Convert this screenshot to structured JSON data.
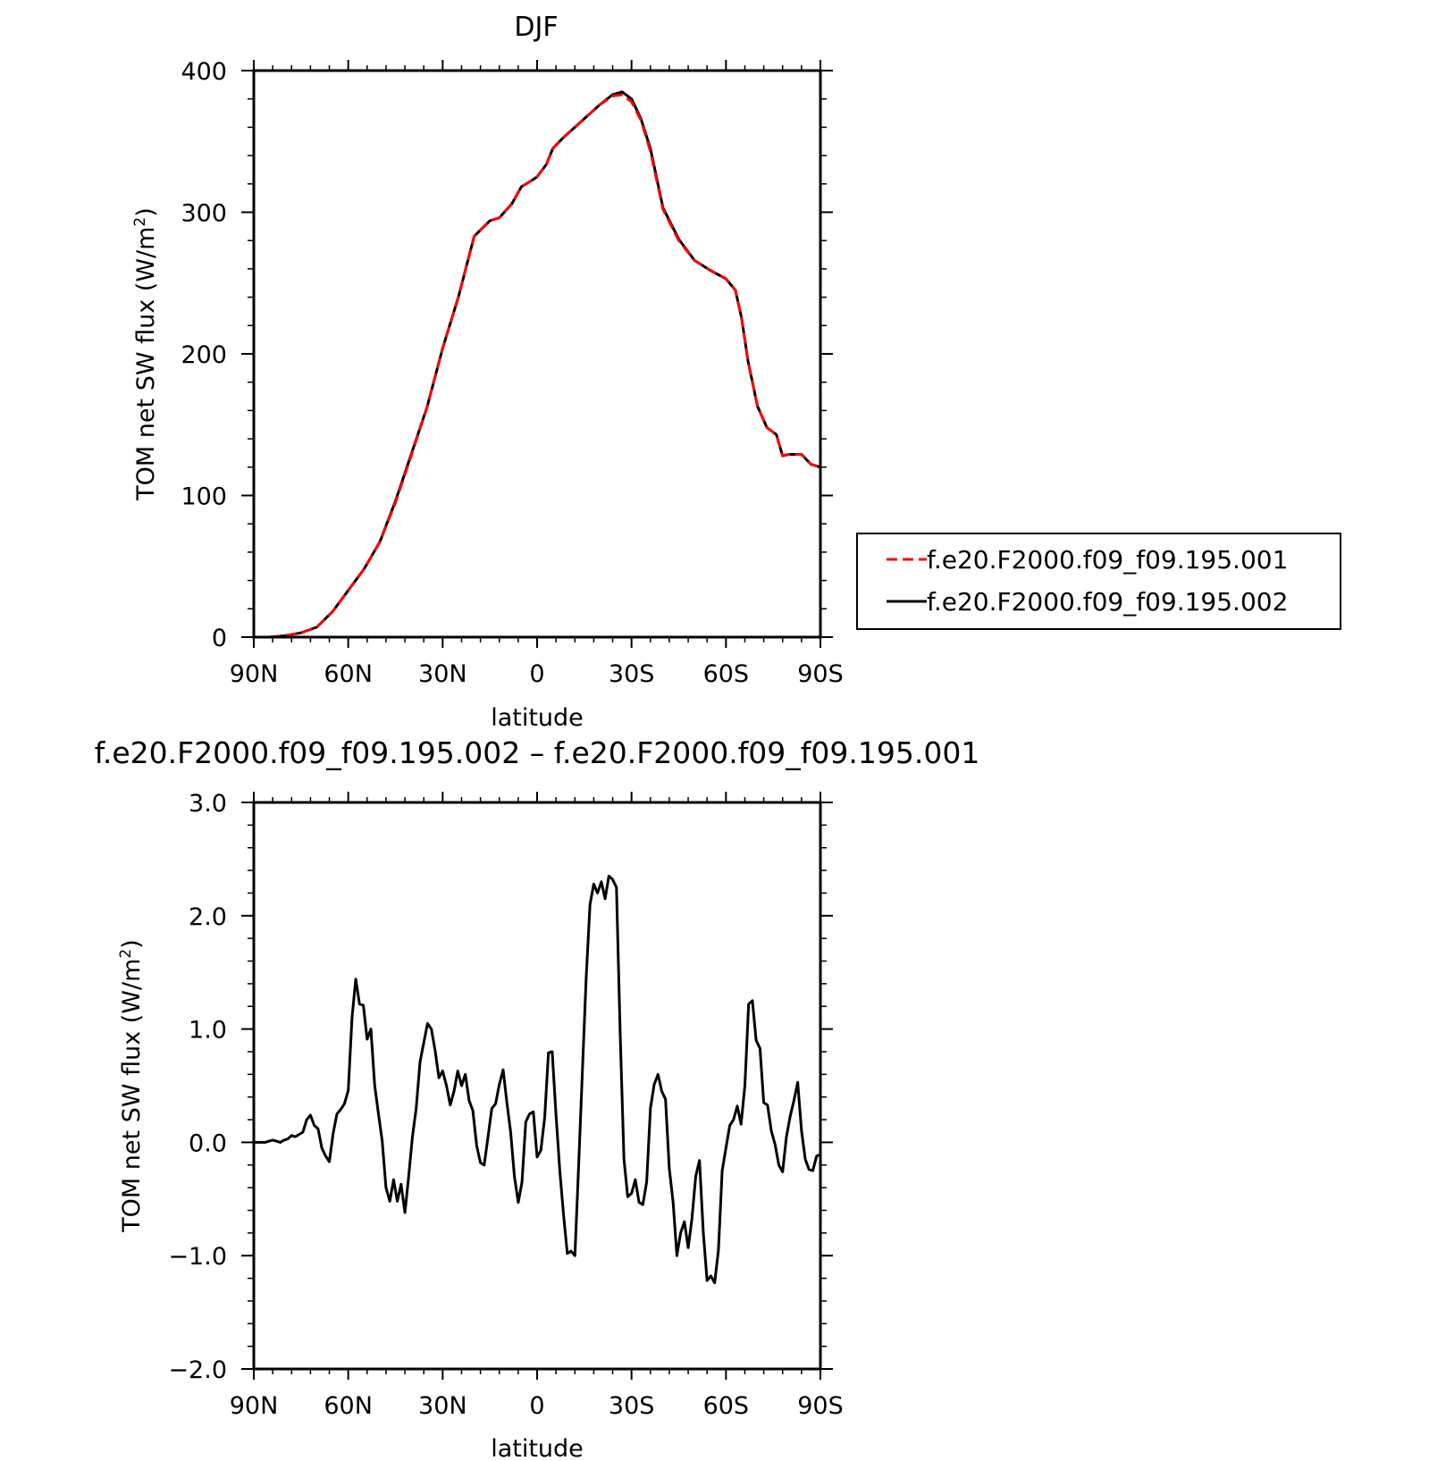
{
  "chart_data": [
    {
      "type": "line",
      "title": "DJF",
      "xlabel": "latitude",
      "ylabel": "TOM net SW flux (W/m²)",
      "ylabel_text": "TOM net SW flux (W/m",
      "ylabel_sup": "2",
      "ylabel_close": ")",
      "x_tick_values": [
        90,
        60,
        30,
        0,
        -30,
        -60,
        -90
      ],
      "x_tick_labels": [
        "90N",
        "60N",
        "30N",
        "0",
        "30S",
        "60S",
        "90S"
      ],
      "y_tick_values": [
        0,
        100,
        200,
        300,
        400
      ],
      "y_tick_labels": [
        "0",
        "100",
        "200",
        "300",
        "400"
      ],
      "xlim": [
        90,
        -90
      ],
      "ylim": [
        0,
        400
      ],
      "legend": "outside-right",
      "x": [
        90,
        85,
        80,
        75,
        70,
        65,
        60,
        55,
        50,
        45,
        40,
        35,
        30,
        25,
        20,
        15,
        12,
        8,
        5,
        2,
        0,
        -3,
        -5,
        -8,
        -10,
        -12,
        -15,
        -18,
        -20,
        -24,
        -27,
        -30,
        -33,
        -36,
        -40,
        -45,
        -50,
        -55,
        -60,
        -63,
        -65,
        -67,
        -70,
        -73,
        -76,
        -78,
        -80,
        -84,
        -87,
        -90
      ],
      "series": [
        {
          "name": "f.e20.F2000.f09_f09.195.001",
          "color": "#ff0000",
          "dash": "dashed",
          "values": [
            0,
            0,
            1,
            3,
            7,
            18,
            33,
            48,
            67,
            95,
            128,
            162,
            204,
            240,
            283,
            294,
            296,
            306,
            318,
            322,
            325,
            334,
            345,
            352,
            356,
            360,
            366,
            372,
            376,
            382,
            383,
            378,
            365,
            343,
            302,
            280,
            266,
            259,
            253,
            245,
            225,
            195,
            163,
            148,
            143,
            128,
            129,
            129,
            122,
            120
          ]
        },
        {
          "name": "f.e20.F2000.f09_f09.195.002",
          "color": "#000000",
          "dash": "solid",
          "values": [
            0,
            0,
            1,
            3,
            7,
            18,
            33,
            48,
            67,
            96,
            129,
            162,
            204,
            240,
            283,
            294,
            296,
            306,
            318,
            322,
            325,
            334,
            345,
            352,
            356,
            360,
            366,
            372,
            376,
            383,
            385,
            380,
            366,
            345,
            303,
            281,
            266,
            259,
            253,
            245,
            225,
            195,
            163,
            148,
            143,
            128,
            129,
            129,
            122,
            120
          ]
        }
      ]
    },
    {
      "type": "line",
      "title": "f.e20.F2000.f09_f09.195.002 – f.e20.F2000.f09_f09.195.001",
      "xlabel": "latitude",
      "ylabel": "TOM net SW flux (W/m²)",
      "ylabel_text": "TOM net SW flux (W/m",
      "ylabel_sup": "2",
      "ylabel_close": ")",
      "x_tick_values": [
        90,
        60,
        30,
        0,
        -30,
        -60,
        -90
      ],
      "x_tick_labels": [
        "90N",
        "60N",
        "30N",
        "0",
        "30S",
        "60S",
        "90S"
      ],
      "y_tick_values": [
        -2,
        -1,
        0,
        1,
        2,
        3
      ],
      "y_tick_labels": [
        "−2.0",
        "−1.0",
        "0.0",
        "1.0",
        "2.0",
        "3.0"
      ],
      "xlim": [
        90,
        -90
      ],
      "ylim": [
        -2,
        3
      ],
      "series": [
        {
          "name": "",
          "color": "#000000",
          "values": [
            0,
            0,
            0,
            0,
            0.01,
            0.02,
            0.01,
            0,
            0.02,
            0.03,
            0.06,
            0.05,
            0.07,
            0.09,
            0.2,
            0.24,
            0.15,
            0.12,
            -0.05,
            -0.12,
            -0.17,
            0.08,
            0.25,
            0.29,
            0.34,
            0.46,
            1.1,
            1.44,
            1.22,
            1.21,
            0.91,
            1.0,
            0.5,
            0.25,
            0.01,
            -0.4,
            -0.52,
            -0.33,
            -0.52,
            -0.37,
            -0.62,
            -0.3,
            0.05,
            0.3,
            0.71,
            0.88,
            1.05,
            1.0,
            0.81,
            0.57,
            0.63,
            0.5,
            0.33,
            0.45,
            0.63,
            0.5,
            0.6,
            0.37,
            0.28,
            -0.03,
            -0.18,
            -0.2,
            0.05,
            0.3,
            0.34,
            0.51,
            0.64,
            0.35,
            0.09,
            -0.3,
            -0.53,
            -0.35,
            0.18,
            0.25,
            0.27,
            -0.13,
            -0.07,
            0.22,
            0.79,
            0.8,
            0.25,
            -0.25,
            -0.64,
            -0.98,
            -0.96,
            -1.0,
            -0.2,
            0.63,
            1.45,
            2.1,
            2.28,
            2.2,
            2.3,
            2.15,
            2.35,
            2.32,
            2.25,
            0.95,
            -0.15,
            -0.48,
            -0.45,
            -0.33,
            -0.53,
            -0.55,
            -0.35,
            0.3,
            0.51,
            0.6,
            0.45,
            0.38,
            -0.23,
            -0.53,
            -1.0,
            -0.8,
            -0.7,
            -0.93,
            -0.67,
            -0.3,
            -0.16,
            -0.8,
            -1.22,
            -1.18,
            -1.24,
            -0.95,
            -0.25,
            -0.05,
            0.15,
            0.2,
            0.32,
            0.16,
            0.5,
            1.22,
            1.25,
            0.9,
            0.83,
            0.35,
            0.33,
            0.1,
            -0.02,
            -0.2,
            -0.26,
            0.05,
            0.23,
            0.37,
            0.53,
            0.1,
            -0.15,
            -0.24,
            -0.25,
            -0.12,
            -0.11
          ]
        }
      ]
    }
  ],
  "legend": {
    "items": [
      {
        "label": "f.e20.F2000.f09_f09.195.001",
        "color": "#ff0000",
        "dash": "dashed"
      },
      {
        "label": "f.e20.F2000.f09_f09.195.002",
        "color": "#000000",
        "dash": "solid"
      }
    ]
  }
}
